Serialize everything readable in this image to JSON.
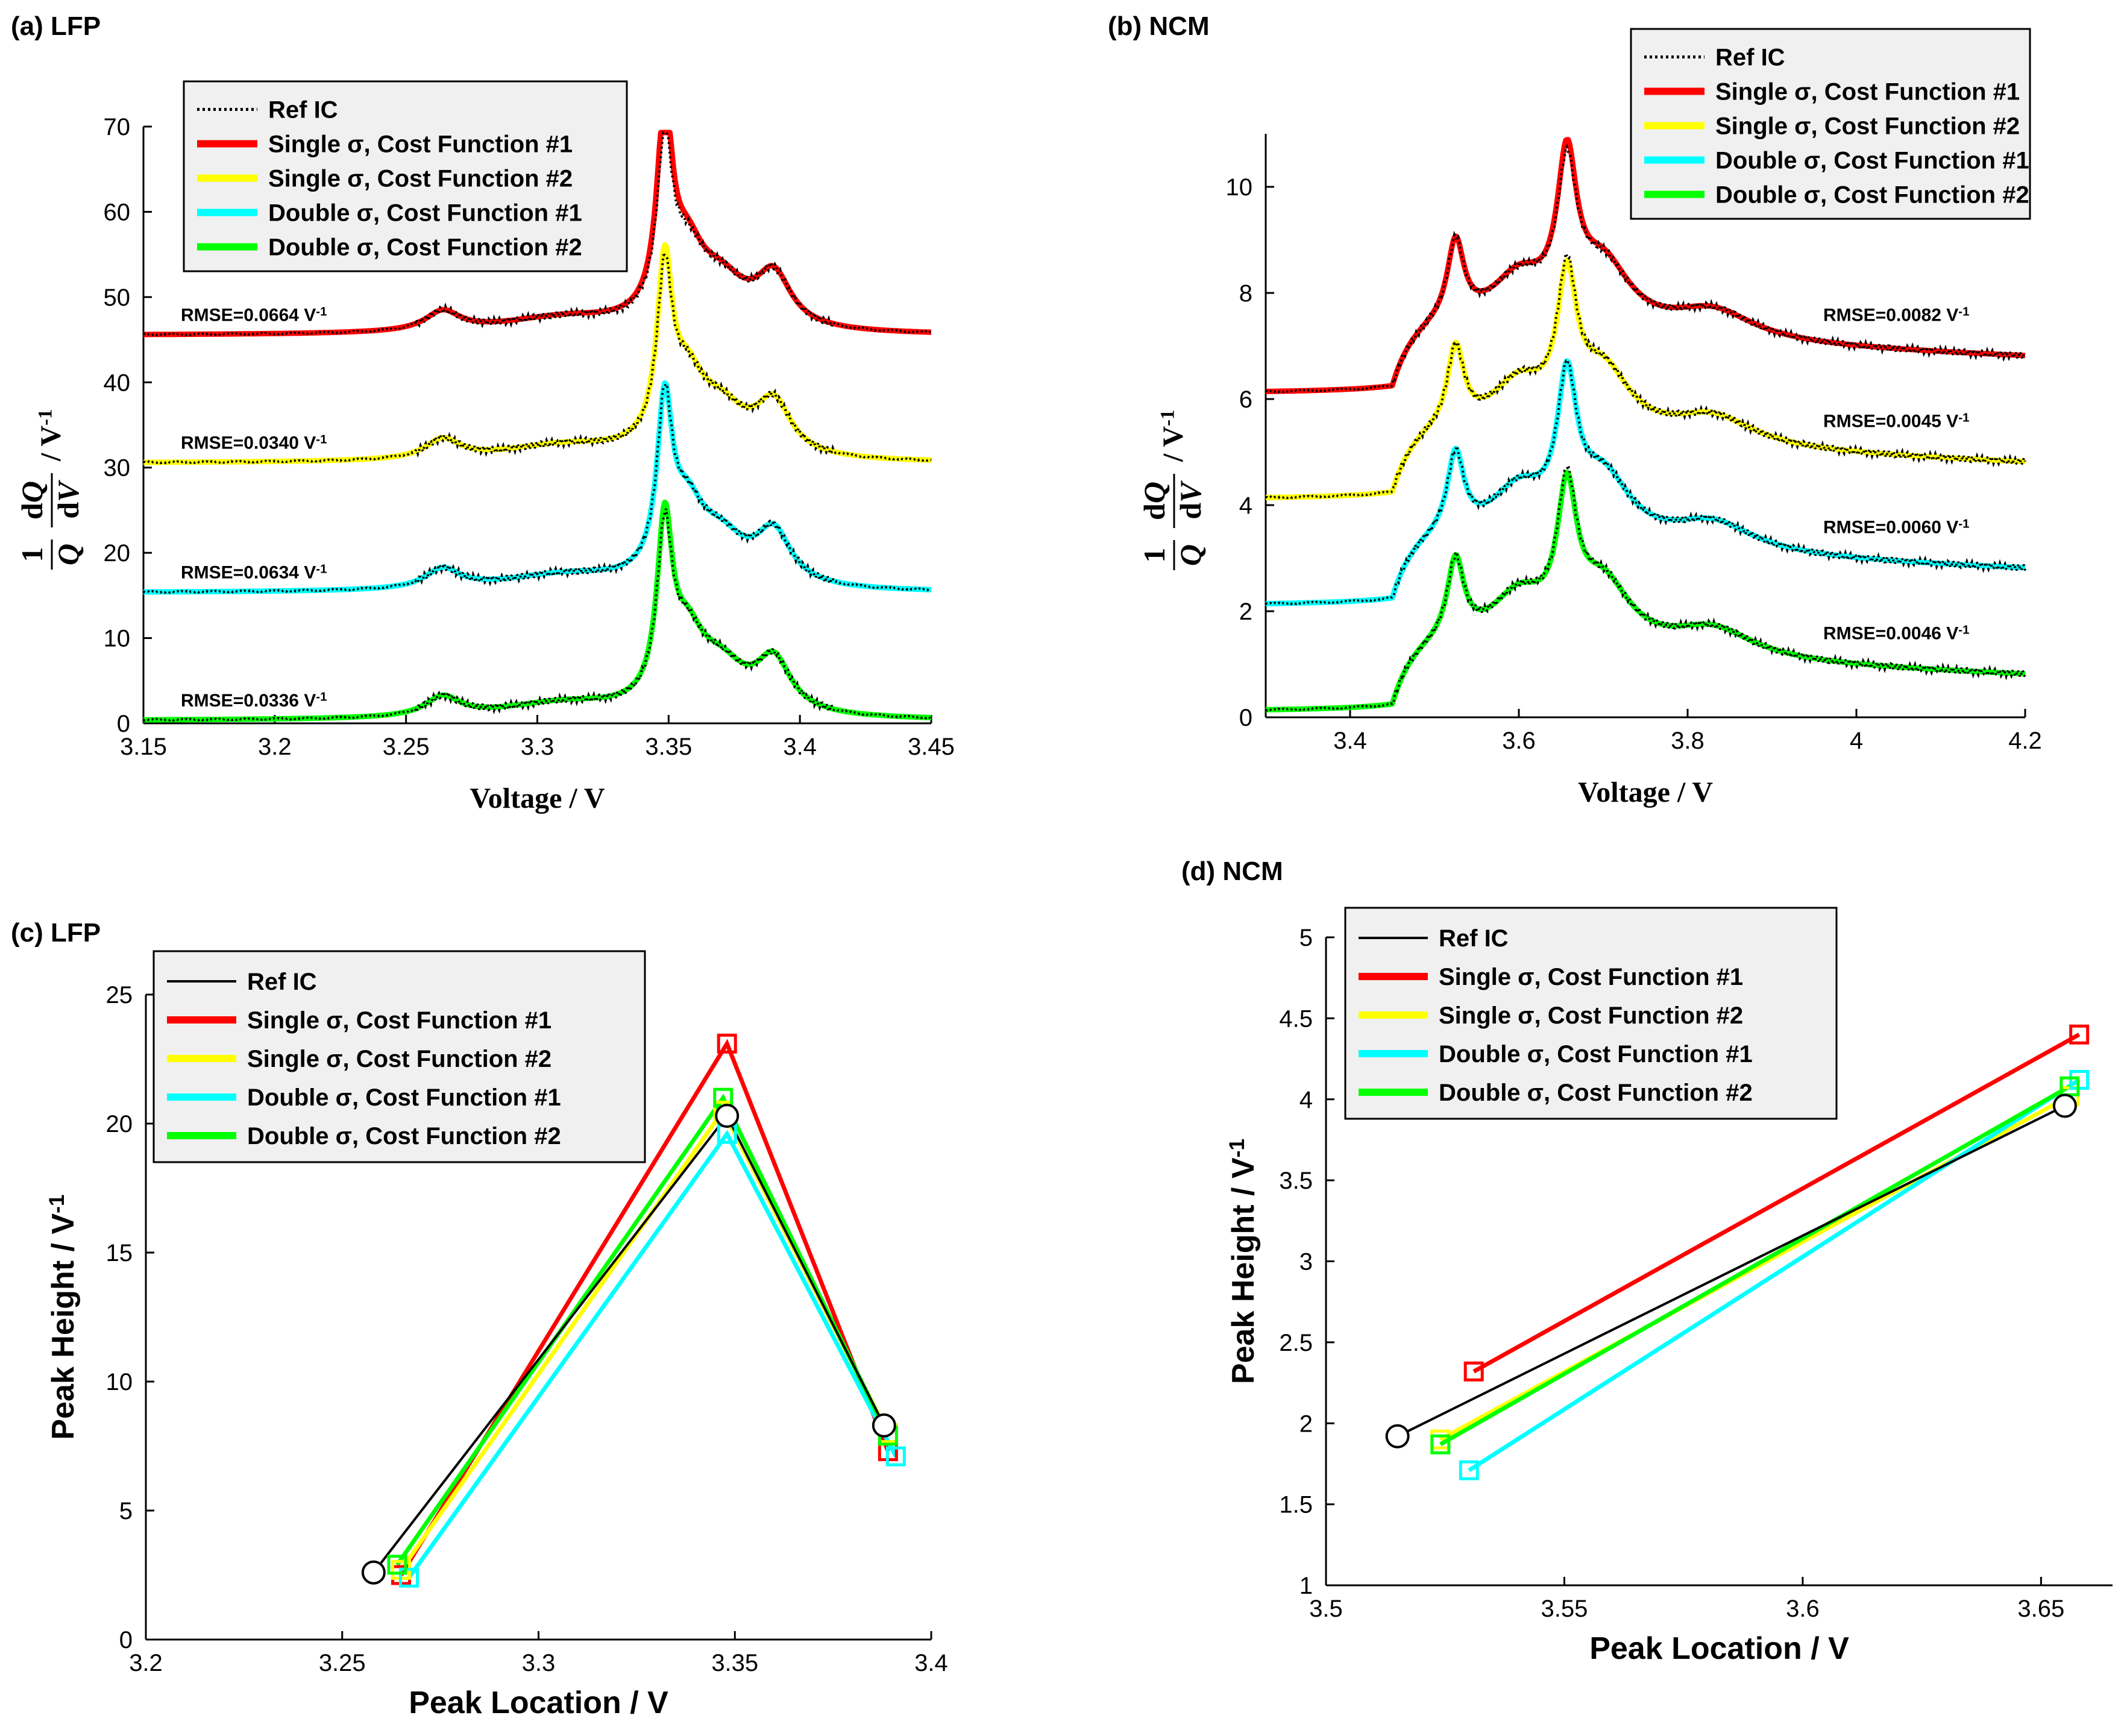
{
  "chart_data": [
    {
      "panel": "a",
      "type": "line",
      "title": "(a) LFP",
      "xlabel": "Voltage / V",
      "ylabel_suffix": "/ V",
      "ylabel_exp": "-1",
      "xlim": [
        3.15,
        3.45
      ],
      "ylim": [
        0,
        70
      ],
      "xticks": [
        "3.15",
        "3.2",
        "3.25",
        "3.3",
        "3.35",
        "3.4",
        "3.45"
      ],
      "yticks": [
        "0",
        "10",
        "20",
        "30",
        "40",
        "50",
        "60",
        "70"
      ],
      "legend": [
        "Ref IC",
        "Single σ, Cost Function #1",
        "Single σ, Cost Function #2",
        "Double σ, Cost Function #1",
        "Double σ, Cost Function #2"
      ],
      "annotations": [
        {
          "text": "RMSE=0.0664 V",
          "sup": "-1",
          "series": "Single σ, Cost Function #1"
        },
        {
          "text": "RMSE=0.0340 V",
          "sup": "-1",
          "series": "Single σ, Cost Function #2"
        },
        {
          "text": "RMSE=0.0634 V",
          "sup": "-1",
          "series": "Double σ, Cost Function #1"
        },
        {
          "text": "RMSE=0.0336 V",
          "sup": "-1",
          "series": "Double σ, Cost Function #2"
        }
      ],
      "profile": {
        "offsets": [
          45.5,
          30.5,
          15.3,
          0.3
        ],
        "peaks": [
          {
            "center": 3.264,
            "width": 0.008,
            "height": 2.3
          },
          {
            "center": 3.31,
            "width": 0.03,
            "height": 1.8
          },
          {
            "center": 3.3485,
            "width": 0.0035,
            "height": 20.0
          },
          {
            "center": 3.357,
            "width": 0.008,
            "height": 7.5
          },
          {
            "center": 3.37,
            "width": 0.012,
            "height": 5.0
          },
          {
            "center": 3.39,
            "width": 0.008,
            "height": 6.0
          }
        ],
        "step": {
          "center": 3.347,
          "width": 0.004,
          "height": 0.3
        },
        "fit_scale": [
          1.15,
          1.0,
          0.95,
          1.0
        ]
      }
    },
    {
      "panel": "b",
      "type": "line",
      "title": "(b) NCM",
      "xlabel": "Voltage / V",
      "ylabel_suffix": "/ V",
      "ylabel_exp": "-1",
      "xlim": [
        3.3,
        4.2
      ],
      "ylim": [
        0,
        11
      ],
      "xticks": [
        "3.4",
        "3.6",
        "3.8",
        "4",
        "4.2"
      ],
      "xtick_values": [
        3.4,
        3.6,
        3.8,
        4.0,
        4.2
      ],
      "yticks": [
        "0",
        "2",
        "4",
        "6",
        "8",
        "10"
      ],
      "legend": [
        "Ref IC",
        "Single σ, Cost Function #1",
        "Single σ, Cost Function #2",
        "Double σ, Cost Function #1",
        "Double σ, Cost Function #2"
      ],
      "annotations": [
        {
          "text": "RMSE=0.0082 V",
          "sup": "-1",
          "series": "Single σ, Cost Function #1"
        },
        {
          "text": "RMSE=0.0045 V",
          "sup": "-1",
          "series": "Single σ, Cost Function #2"
        },
        {
          "text": "RMSE=0.0060 V",
          "sup": "-1",
          "series": "Double σ, Cost Function #1"
        },
        {
          "text": "RMSE=0.0046 V",
          "sup": "-1",
          "series": "Double σ, Cost Function #2"
        }
      ],
      "profile": {
        "offsets": [
          6.1,
          4.1,
          2.1,
          0.1
        ],
        "peaks": [
          {
            "center": 3.525,
            "width": 0.012,
            "height": 1.5
          },
          {
            "center": 3.6,
            "width": 0.04,
            "height": 0.9
          },
          {
            "center": 3.657,
            "width": 0.014,
            "height": 2.5
          },
          {
            "center": 3.7,
            "width": 0.04,
            "height": 1.2
          },
          {
            "center": 3.83,
            "width": 0.06,
            "height": 0.55
          }
        ],
        "baseline": {
          "start": 3.45,
          "rise": 1.3,
          "decay": 0.7
        },
        "fit_scale": [
          1.12,
          1.0,
          1.04,
          1.0
        ]
      }
    },
    {
      "panel": "c",
      "type": "line",
      "title": "(c) LFP",
      "xlabel": "Peak Location / V",
      "ylabel": "Peak Height / V",
      "ylabel_exp": "-1",
      "xlim": [
        3.2,
        3.4
      ],
      "ylim": [
        0,
        25
      ],
      "xticks": [
        "3.2",
        "3.25",
        "3.3",
        "3.35",
        "3.4"
      ],
      "yticks": [
        "0",
        "5",
        "10",
        "15",
        "20",
        "25"
      ],
      "legend": [
        "Ref IC",
        "Single σ, Cost Function #1",
        "Single σ, Cost Function #2",
        "Double σ, Cost Function #1",
        "Double σ, Cost Function #2"
      ],
      "series": [
        {
          "name": "Ref IC",
          "marker": "circle",
          "x": [
            3.258,
            3.348,
            3.388
          ],
          "y": [
            2.6,
            20.3,
            8.3
          ]
        },
        {
          "name": "Single σ, Cost Function #1",
          "marker": "square",
          "x": [
            3.265,
            3.348,
            3.389
          ],
          "y": [
            2.5,
            23.1,
            7.3
          ]
        },
        {
          "name": "Single σ, Cost Function #2",
          "marker": "square",
          "x": [
            3.265,
            3.347,
            3.389
          ],
          "y": [
            2.7,
            20.5,
            8.0
          ]
        },
        {
          "name": "Double σ, Cost Function #1",
          "marker": "square",
          "x": [
            3.267,
            3.348,
            3.391
          ],
          "y": [
            2.4,
            19.6,
            7.1
          ]
        },
        {
          "name": "Double σ, Cost Function #2",
          "marker": "square",
          "x": [
            3.264,
            3.347,
            3.389
          ],
          "y": [
            2.9,
            21.0,
            7.9
          ]
        }
      ]
    },
    {
      "panel": "d",
      "type": "line",
      "title": "(d) NCM",
      "xlabel": "Peak Location / V",
      "ylabel": "Peak Height / V",
      "ylabel_exp": "-1",
      "xlim": [
        3.5,
        3.665
      ],
      "ylim": [
        1,
        5
      ],
      "xticks": [
        "3.5",
        "3.55",
        "3.6",
        "3.65"
      ],
      "xtick_values": [
        3.5,
        3.55,
        3.6,
        3.65
      ],
      "yticks": [
        "1",
        "1.5",
        "2",
        "2.5",
        "3",
        "3.5",
        "4",
        "4.5",
        "5"
      ],
      "legend": [
        "Ref IC",
        "Single σ, Cost Function #1",
        "Single σ, Cost Function #2",
        "Double σ, Cost Function #1",
        "Double σ, Cost Function #2"
      ],
      "series": [
        {
          "name": "Ref IC",
          "marker": "circle",
          "x": [
            3.515,
            3.655
          ],
          "y": [
            1.92,
            3.96
          ]
        },
        {
          "name": "Single σ, Cost Function #1",
          "marker": "square",
          "x": [
            3.531,
            3.658
          ],
          "y": [
            2.32,
            4.4
          ]
        },
        {
          "name": "Single σ, Cost Function #2",
          "marker": "square",
          "x": [
            3.524,
            3.656
          ],
          "y": [
            1.9,
            4.02
          ]
        },
        {
          "name": "Double σ, Cost Function #1",
          "marker": "square",
          "x": [
            3.53,
            3.658
          ],
          "y": [
            1.71,
            4.12
          ]
        },
        {
          "name": "Double σ, Cost Function #2",
          "marker": "square",
          "x": [
            3.524,
            3.656
          ],
          "y": [
            1.87,
            4.08
          ]
        }
      ]
    }
  ],
  "colors": {
    "ref": "#000000",
    "single1": "#ff0000",
    "single2": "#ffff00",
    "double1": "#00ffff",
    "double2": "#00ff00",
    "legend_bg": "#f0f0f0"
  }
}
